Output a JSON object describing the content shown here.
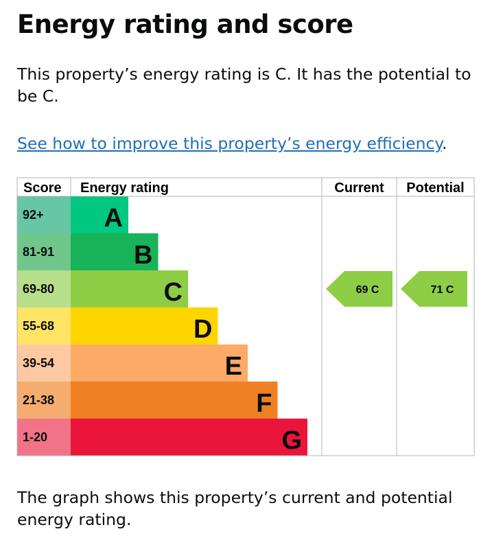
{
  "title": "Energy rating and score",
  "intro": "This property’s energy rating is C. It has the potential to be C.",
  "link": "See how to improve this property’s energy efficiency",
  "link_suffix": ".",
  "footer": "The graph shows this property’s current and potential energy rating.",
  "chart_data": {
    "type": "table",
    "headers": {
      "score": "Score",
      "rating": "Energy rating",
      "current": "Current",
      "potential": "Potential"
    },
    "bands": [
      {
        "letter": "A",
        "range": "92+",
        "color": "#00c781",
        "light": "#66c6a6"
      },
      {
        "letter": "B",
        "range": "81-91",
        "color": "#19b459",
        "light": "#70c78b"
      },
      {
        "letter": "C",
        "range": "69-80",
        "color": "#8dce46",
        "light": "#b7de8b"
      },
      {
        "letter": "D",
        "range": "55-68",
        "color": "#ffd500",
        "light": "#ffe466"
      },
      {
        "letter": "E",
        "range": "39-54",
        "color": "#fcaa65",
        "light": "#fdc9a2"
      },
      {
        "letter": "F",
        "range": "21-38",
        "color": "#ef8023",
        "light": "#f4ac6f"
      },
      {
        "letter": "G",
        "range": "1-20",
        "color": "#e9153b",
        "light": "#f27288"
      }
    ],
    "current": {
      "score": 69,
      "band": "C",
      "label": "69  C"
    },
    "potential": {
      "score": 71,
      "band": "C",
      "label": "71  C"
    }
  }
}
